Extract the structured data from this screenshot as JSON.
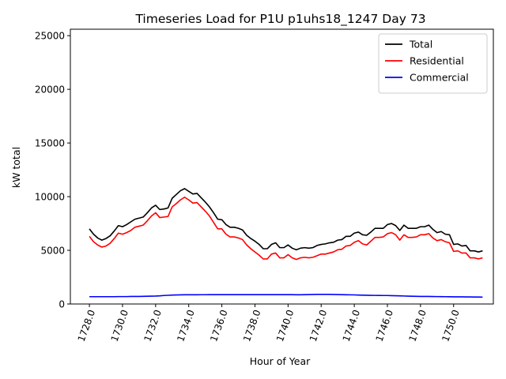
{
  "chart_data": {
    "type": "line",
    "title": "Timeseries Load for P1U p1uhs18_1247  Day 73",
    "xlabel": "Hour of Year",
    "ylabel": "kW total",
    "xlim": [
      1726.85,
      1752.4
    ],
    "ylim": [
      0,
      25600
    ],
    "xticks": [
      1728,
      1730,
      1732,
      1734,
      1736,
      1738,
      1740,
      1742,
      1744,
      1746,
      1748,
      1750
    ],
    "xtick_labels": [
      "1728.0",
      "1730.0",
      "1732.0",
      "1734.0",
      "1736.0",
      "1738.0",
      "1740.0",
      "1742.0",
      "1744.0",
      "1746.0",
      "1748.0",
      "1750.0"
    ],
    "yticks": [
      0,
      5000,
      10000,
      15000,
      20000,
      25000
    ],
    "ytick_labels": [
      "0",
      "5000",
      "10000",
      "15000",
      "20000",
      "25000"
    ],
    "grid": false,
    "legend_position": "top-right",
    "x": [
      1728.0,
      1728.25,
      1728.5,
      1728.75,
      1729.0,
      1729.25,
      1729.5,
      1729.75,
      1730.0,
      1730.25,
      1730.5,
      1730.75,
      1731.0,
      1731.25,
      1731.5,
      1731.75,
      1732.0,
      1732.25,
      1732.5,
      1732.75,
      1733.0,
      1733.25,
      1733.5,
      1733.75,
      1734.0,
      1734.25,
      1734.5,
      1734.75,
      1735.0,
      1735.25,
      1735.5,
      1735.75,
      1736.0,
      1736.25,
      1736.5,
      1736.75,
      1737.0,
      1737.25,
      1737.5,
      1737.75,
      1738.0,
      1738.25,
      1738.5,
      1738.75,
      1739.0,
      1739.25,
      1739.5,
      1739.75,
      1740.0,
      1740.25,
      1740.5,
      1740.75,
      1741.0,
      1741.25,
      1741.5,
      1741.75,
      1742.0,
      1742.25,
      1742.5,
      1742.75,
      1743.0,
      1743.25,
      1743.5,
      1743.75,
      1744.0,
      1744.25,
      1744.5,
      1744.75,
      1745.0,
      1745.25,
      1745.5,
      1745.75,
      1746.0,
      1746.25,
      1746.5,
      1746.75,
      1747.0,
      1747.25,
      1747.5,
      1747.75,
      1748.0,
      1748.25,
      1748.5,
      1748.75,
      1749.0,
      1749.25,
      1749.5,
      1749.75,
      1750.0,
      1750.25,
      1750.5,
      1750.75,
      1751.0,
      1751.25,
      1751.5,
      1751.75
    ],
    "series": [
      {
        "name": "Total",
        "color": "#000000",
        "values": [
          7000,
          6500,
          6150,
          5950,
          6100,
          6350,
          6800,
          7300,
          7200,
          7400,
          7650,
          7900,
          8000,
          8100,
          8500,
          8950,
          9200,
          8800,
          8850,
          8950,
          9850,
          10200,
          10550,
          10750,
          10500,
          10250,
          10300,
          9900,
          9500,
          9050,
          8500,
          7900,
          7850,
          7400,
          7150,
          7150,
          7050,
          6900,
          6400,
          6100,
          5850,
          5550,
          5150,
          5150,
          5550,
          5700,
          5250,
          5250,
          5500,
          5200,
          5050,
          5200,
          5250,
          5200,
          5250,
          5450,
          5550,
          5600,
          5700,
          5750,
          5950,
          6000,
          6300,
          6300,
          6600,
          6700,
          6450,
          6400,
          6700,
          7050,
          7050,
          7050,
          7400,
          7500,
          7300,
          6850,
          7350,
          7050,
          7050,
          7050,
          7200,
          7200,
          7350,
          6950,
          6650,
          6750,
          6500,
          6450,
          5550,
          5600,
          5400,
          5450,
          4950,
          4950,
          4850,
          4950
        ]
      },
      {
        "name": "Residential",
        "color": "#ff0000",
        "values": [
          6300,
          5800,
          5500,
          5300,
          5400,
          5650,
          6100,
          6600,
          6500,
          6650,
          6850,
          7150,
          7250,
          7350,
          7750,
          8200,
          8500,
          8050,
          8100,
          8150,
          9050,
          9350,
          9700,
          9950,
          9700,
          9400,
          9450,
          9050,
          8650,
          8200,
          7600,
          7000,
          7000,
          6500,
          6250,
          6250,
          6150,
          6000,
          5500,
          5150,
          4850,
          4550,
          4200,
          4200,
          4650,
          4750,
          4300,
          4300,
          4600,
          4300,
          4150,
          4300,
          4350,
          4300,
          4350,
          4500,
          4650,
          4650,
          4750,
          4850,
          5050,
          5100,
          5400,
          5450,
          5750,
          5900,
          5600,
          5500,
          5850,
          6200,
          6200,
          6250,
          6550,
          6650,
          6450,
          5950,
          6450,
          6200,
          6200,
          6250,
          6450,
          6450,
          6550,
          6150,
          5900,
          6000,
          5800,
          5700,
          4900,
          4950,
          4750,
          4750,
          4300,
          4300,
          4200,
          4300
        ]
      },
      {
        "name": "Commercial",
        "color": "#0000ff",
        "values": [
          680,
          680,
          680,
          680,
          680,
          680,
          680,
          690,
          690,
          690,
          700,
          700,
          700,
          710,
          720,
          730,
          740,
          760,
          790,
          810,
          830,
          840,
          850,
          860,
          860,
          860,
          860,
          865,
          865,
          870,
          870,
          870,
          870,
          870,
          870,
          870,
          870,
          870,
          870,
          870,
          870,
          870,
          870,
          870,
          870,
          870,
          870,
          870,
          870,
          870,
          860,
          860,
          870,
          880,
          890,
          900,
          900,
          900,
          895,
          890,
          880,
          870,
          860,
          855,
          845,
          835,
          825,
          815,
          805,
          800,
          795,
          790,
          790,
          780,
          770,
          760,
          745,
          730,
          720,
          710,
          705,
          700,
          700,
          695,
          690,
          685,
          680,
          675,
          670,
          670,
          665,
          660,
          655,
          650,
          645,
          640
        ]
      }
    ]
  }
}
